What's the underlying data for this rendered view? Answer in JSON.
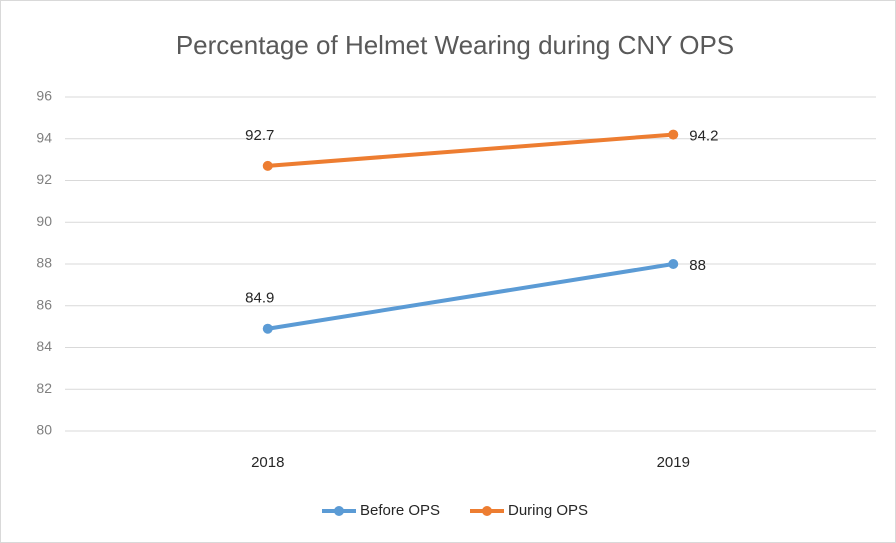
{
  "chart_data": {
    "type": "line",
    "title": "Percentage of Helmet Wearing during CNY OPS",
    "categories": [
      "2018",
      "2019"
    ],
    "series": [
      {
        "name": "Before OPS",
        "color": "#5b9bd5",
        "values": [
          84.9,
          88
        ]
      },
      {
        "name": "During OPS",
        "color": "#ed7d31",
        "values": [
          92.7,
          94.2
        ]
      }
    ],
    "ylim": [
      80,
      96
    ],
    "yticks": [
      80,
      82,
      84,
      86,
      88,
      90,
      92,
      94,
      96
    ],
    "grid": true,
    "legend": "bottom"
  }
}
